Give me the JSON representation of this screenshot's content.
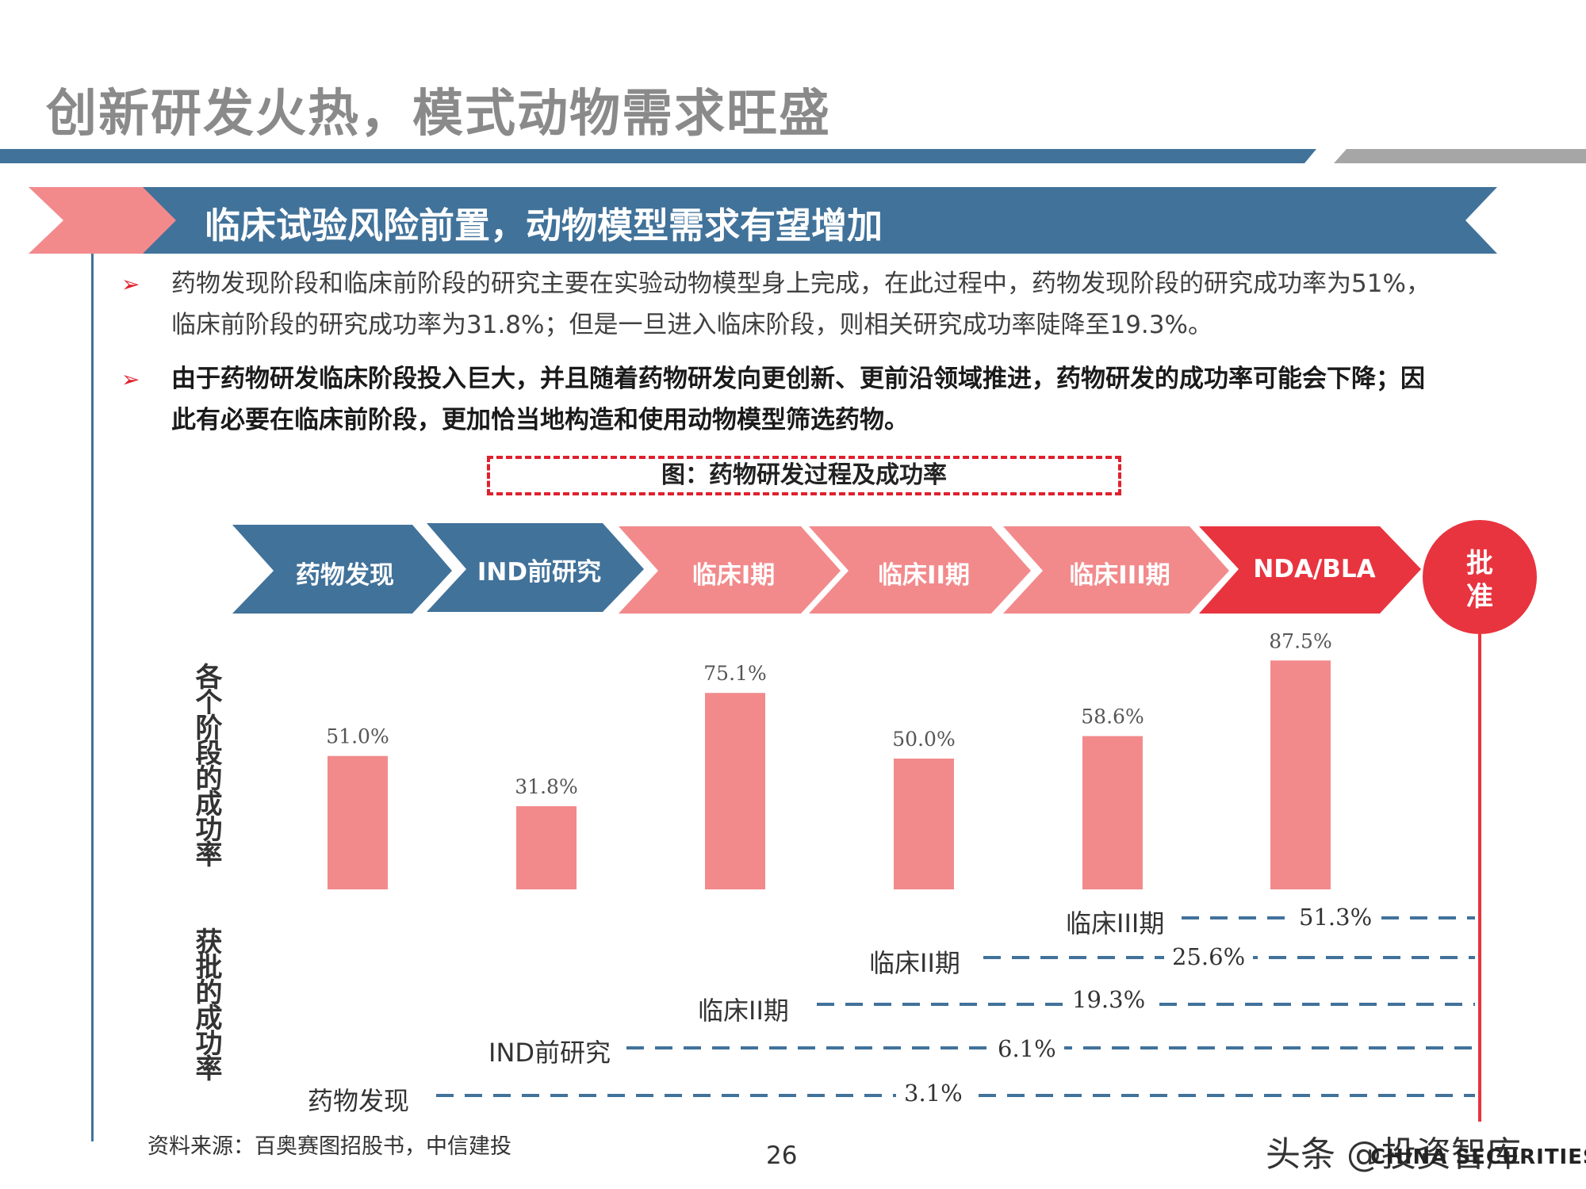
{
  "header": {
    "title": "创新研发火热，模式动物需求旺盛",
    "subtitle": "临床试验风险前置，动物模型需求有望增加"
  },
  "bullets": [
    {
      "line1": "药物发现阶段和临床前阶段的研究主要在实验动物模型身上完成，在此过程中，药物发现阶段的研究成功率为51%，",
      "line2": "临床前阶段的研究成功率为31.8%；但是一旦进入临床阶段，则相关研究成功率陡降至19.3%。"
    },
    {
      "line1": "由于药物研发临床阶段投入巨大，并且随着药物研发向更创新、更前沿领域推进，药物研发的成功率可能会下降；因",
      "line2": "此有必要在临床前阶段，更加恰当地构造和使用动物模型筛选药物。"
    }
  ],
  "figure": {
    "caption": "图：药物研发过程及成功率",
    "stages": [
      "药物发现",
      "IND前研究",
      "临床I期",
      "临床II期",
      "临床III期",
      "NDA/BLA"
    ],
    "approve": {
      "line1": "批",
      "line2": "准"
    },
    "ylabel_top": "各个阶段的成功率",
    "ylabel_bottom": "获批的成功率"
  },
  "chart_data": [
    {
      "type": "bar",
      "title": "",
      "ylabel": "各个阶段的成功率",
      "categories": [
        "药物发现",
        "IND前研究",
        "临床I期",
        "临床II期",
        "临床III期",
        "NDA/BLA"
      ],
      "values": [
        51.0,
        31.8,
        75.1,
        50.0,
        58.6,
        87.5
      ],
      "value_labels": [
        "51.0%",
        "31.8%",
        "75.1%",
        "50.0%",
        "58.6%",
        "87.5%"
      ],
      "ylim": [
        0,
        100
      ],
      "bar_color": "#f28a8c"
    },
    {
      "type": "table",
      "ylabel": "获批的成功率",
      "rows": [
        {
          "stage": "临床III期",
          "value": "51.3%"
        },
        {
          "stage": "临床II期",
          "value": "25.6%"
        },
        {
          "stage": "临床II期",
          "value": "19.3%"
        },
        {
          "stage": "IND前研究",
          "value": "6.1%"
        },
        {
          "stage": "药物发现",
          "value": "3.1%"
        }
      ]
    }
  ],
  "footer": {
    "source": "资料来源：百奥赛图招股书，中信建投",
    "page": "26",
    "watermark": "头条 @投资智库",
    "watermark_sub": "CHINA SECURITIES"
  },
  "colors": {
    "blue": "#41729a",
    "pink": "#f28a8c",
    "red": "#e8343f",
    "gray": "#8a8a8a"
  }
}
